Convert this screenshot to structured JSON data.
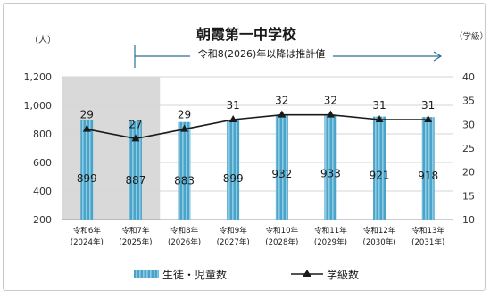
{
  "chart_data": {
    "type": "bar+line",
    "title": "朝霞第一中学校",
    "y_left_unit": "（人）",
    "y_right_unit": "（学級）",
    "projection_note": "令和8(2026)年以降は推計値",
    "categories": [
      {
        "era": "令和6年",
        "year": "(2024年)"
      },
      {
        "era": "令和7年",
        "year": "(2025年)"
      },
      {
        "era": "令和8年",
        "year": "(2026年)"
      },
      {
        "era": "令和9年",
        "year": "(2027年)"
      },
      {
        "era": "令和10年",
        "year": "(2028年)"
      },
      {
        "era": "令和11年",
        "year": "(2029年)"
      },
      {
        "era": "令和12年",
        "year": "(2030年)"
      },
      {
        "era": "令和13年",
        "year": "(2031年)"
      }
    ],
    "y_left": {
      "min": 200,
      "max": 1200,
      "ticks": [
        "200",
        "400",
        "600",
        "800",
        "1,000",
        "1,200"
      ]
    },
    "y_right": {
      "min": 10,
      "max": 40,
      "ticks": [
        "10",
        "15",
        "20",
        "25",
        "30",
        "35",
        "40"
      ]
    },
    "grid": true,
    "actual_period_shaded": [
      "令和6年",
      "令和7年"
    ],
    "series": [
      {
        "name": "生徒・児童数",
        "type": "bar",
        "axis": "left",
        "color": "#4aa3c8",
        "values": [
          899,
          887,
          883,
          899,
          932,
          933,
          921,
          918
        ],
        "labels": [
          "899",
          "887",
          "883",
          "899",
          "932",
          "933",
          "921",
          "918"
        ]
      },
      {
        "name": "学級数",
        "type": "line",
        "axis": "right",
        "color": "#1a1a1a",
        "values": [
          29,
          27,
          29,
          31,
          32,
          32,
          31,
          31
        ],
        "labels": [
          "29",
          "27",
          "29",
          "31",
          "32",
          "32",
          "31",
          "31"
        ]
      }
    ],
    "legend": {
      "position": "bottom"
    }
  }
}
